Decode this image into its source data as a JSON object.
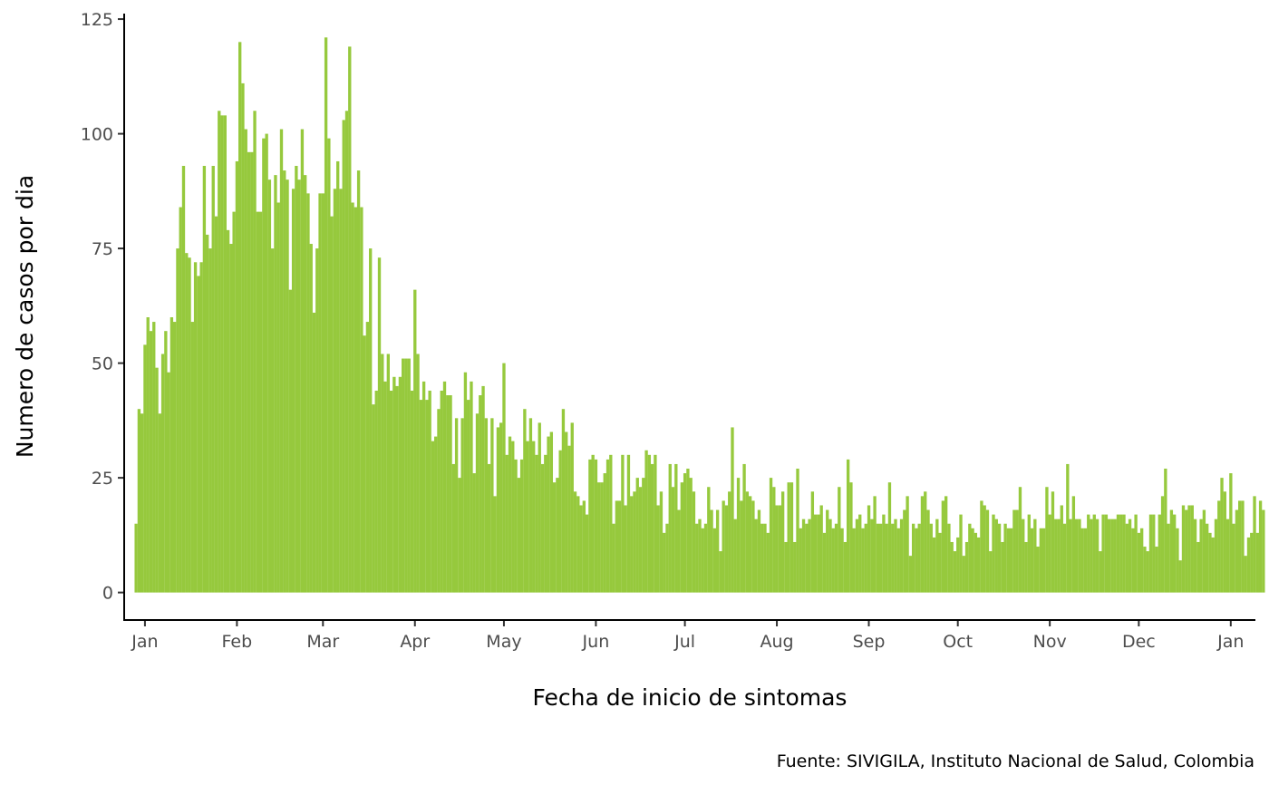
{
  "chart_data": {
    "type": "bar",
    "xlabel": "Fecha de inicio de sintomas",
    "ylabel": "Numero de casos por dia",
    "caption": "Fuente: SIVIGILA, Instituto Nacional de Salud, Colombia",
    "bar_color": "#96c93d",
    "ylim": [
      -6,
      126
    ],
    "y_ticks": [
      0,
      25,
      50,
      75,
      100,
      125
    ],
    "x_range": [
      "2019-12-25",
      "2021-01-09"
    ],
    "x_ticks": [
      {
        "date": "2020-01-01",
        "label": "Jan"
      },
      {
        "date": "2020-02-01",
        "label": "Feb"
      },
      {
        "date": "2020-03-01",
        "label": "Mar"
      },
      {
        "date": "2020-04-01",
        "label": "Apr"
      },
      {
        "date": "2020-05-01",
        "label": "May"
      },
      {
        "date": "2020-06-01",
        "label": "Jun"
      },
      {
        "date": "2020-07-01",
        "label": "Jul"
      },
      {
        "date": "2020-08-01",
        "label": "Aug"
      },
      {
        "date": "2020-09-01",
        "label": "Sep"
      },
      {
        "date": "2020-10-01",
        "label": "Oct"
      },
      {
        "date": "2020-11-01",
        "label": "Nov"
      },
      {
        "date": "2020-12-01",
        "label": "Dec"
      },
      {
        "date": "2021-01-01",
        "label": "Jan"
      }
    ],
    "start_date": "2019-12-29",
    "values": [
      15,
      40,
      39,
      54,
      60,
      57,
      59,
      49,
      39,
      52,
      57,
      48,
      60,
      59,
      75,
      84,
      93,
      74,
      73,
      59,
      72,
      69,
      72,
      93,
      78,
      75,
      93,
      82,
      105,
      104,
      104,
      79,
      76,
      83,
      94,
      120,
      111,
      101,
      96,
      96,
      105,
      83,
      83,
      99,
      100,
      90,
      75,
      91,
      85,
      101,
      92,
      90,
      66,
      88,
      93,
      90,
      101,
      91,
      87,
      76,
      61,
      75,
      87,
      87,
      121,
      99,
      82,
      88,
      94,
      88,
      103,
      105,
      119,
      85,
      84,
      92,
      84,
      56,
      59,
      75,
      41,
      44,
      73,
      52,
      46,
      52,
      44,
      47,
      45,
      47,
      51,
      51,
      51,
      44,
      66,
      52,
      42,
      46,
      42,
      44,
      33,
      34,
      40,
      44,
      46,
      43,
      43,
      28,
      38,
      25,
      38,
      48,
      42,
      46,
      26,
      39,
      43,
      45,
      38,
      28,
      38,
      21,
      36,
      37,
      50,
      30,
      34,
      33,
      29,
      25,
      29,
      40,
      33,
      38,
      33,
      30,
      37,
      28,
      30,
      34,
      35,
      24,
      25,
      31,
      40,
      35,
      32,
      37,
      22,
      21,
      19,
      20,
      17,
      29,
      30,
      29,
      24,
      24,
      26,
      29,
      30,
      15,
      20,
      20,
      30,
      19,
      30,
      21,
      22,
      25,
      23,
      25,
      31,
      30,
      28,
      30,
      19,
      22,
      13,
      15,
      28,
      23,
      28,
      18,
      24,
      26,
      27,
      25,
      22,
      15,
      16,
      14,
      15,
      23,
      18,
      14,
      18,
      9,
      20,
      19,
      22,
      36,
      16,
      25,
      20,
      28,
      22,
      21,
      20,
      16,
      18,
      15,
      15,
      13,
      25,
      23,
      19,
      19,
      22,
      11,
      24,
      24,
      11,
      27,
      14,
      16,
      15,
      16,
      22,
      17,
      17,
      19,
      13,
      18,
      16,
      14,
      15,
      23,
      14,
      11,
      29,
      24,
      14,
      16,
      17,
      14,
      15,
      19,
      16,
      21,
      15,
      15,
      17,
      15,
      24,
      15,
      16,
      14,
      16,
      18,
      21,
      8,
      15,
      14,
      15,
      21,
      22,
      18,
      15,
      12,
      16,
      13,
      20,
      21,
      15,
      11,
      9,
      12,
      17,
      8,
      11,
      15,
      14,
      13,
      12,
      20,
      19,
      18,
      9,
      17,
      16,
      15,
      11,
      15,
      14,
      14,
      18,
      18,
      23,
      16,
      11,
      17,
      14,
      16,
      10,
      14,
      14,
      23,
      17,
      22,
      16,
      16,
      19,
      15,
      28,
      16,
      21,
      16,
      16,
      14,
      14,
      17,
      16,
      17,
      16,
      9,
      17,
      17,
      16,
      16,
      16,
      17,
      17,
      17,
      15,
      16,
      14,
      17,
      13,
      14,
      10,
      9,
      17,
      17,
      10,
      17,
      21,
      27,
      15,
      18,
      17,
      14,
      7,
      19,
      18,
      19,
      19,
      16,
      11,
      16,
      18,
      15,
      13,
      12,
      16,
      20,
      25,
      22,
      16,
      26,
      15,
      18,
      20,
      20,
      8,
      12,
      13,
      21,
      13,
      20,
      18
    ]
  }
}
